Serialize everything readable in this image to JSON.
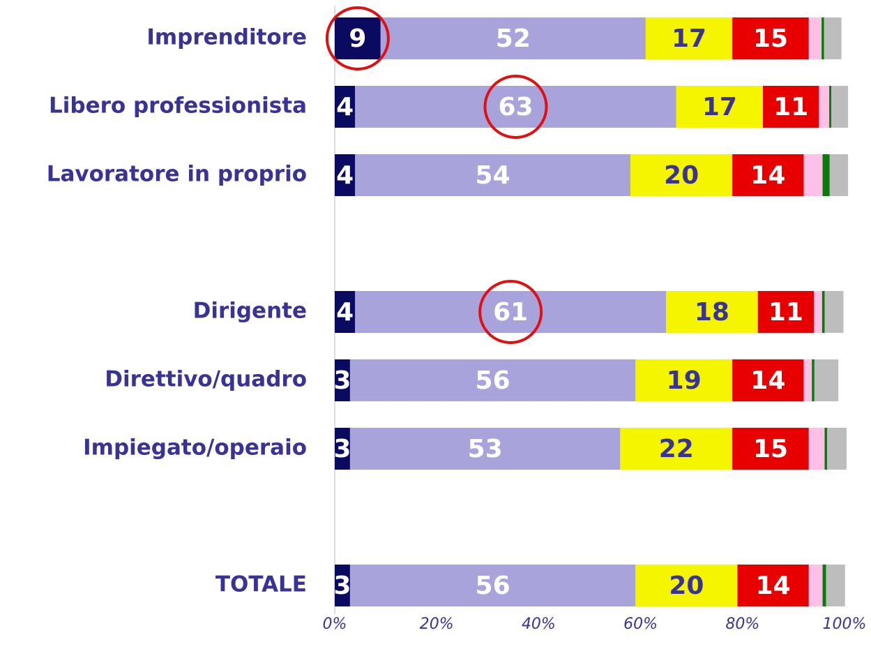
{
  "chart_data": {
    "type": "stacked_barh",
    "categories": [
      "Imprenditore",
      "Libero professionista",
      "Lavoratore in proprio",
      null,
      "Dirigente",
      "Direttivo/quadro",
      "Impiegato/operaio",
      null,
      "TOTALE"
    ],
    "series": [
      {
        "color": "#0a0a60",
        "label_color": "#ffffff",
        "show_labels": true,
        "values": [
          9,
          4,
          4,
          null,
          4,
          3,
          3,
          null,
          3
        ]
      },
      {
        "color": "#a9a3dc",
        "label_color": "#ffffff",
        "show_labels": true,
        "values": [
          52,
          63,
          54,
          null,
          61,
          56,
          53,
          null,
          56
        ]
      },
      {
        "color": "#f5f500",
        "label_color": "#3a3396",
        "show_labels": true,
        "values": [
          17,
          17,
          20,
          null,
          18,
          19,
          22,
          null,
          20
        ]
      },
      {
        "color": "#e80000",
        "label_color": "#ffffff",
        "show_labels": true,
        "values": [
          15,
          11,
          14,
          null,
          11,
          14,
          15,
          null,
          14
        ]
      },
      {
        "color": "#ffc0e8",
        "show_labels": false,
        "values": [
          2.5,
          2,
          3.7,
          null,
          1.6,
          1.6,
          3.1,
          null,
          2.7
        ]
      },
      {
        "color": "#0a7a0a",
        "show_labels": false,
        "values": [
          0.5,
          0.4,
          1.4,
          null,
          0.5,
          0.5,
          0.5,
          null,
          0.7
        ]
      },
      {
        "color": "#bdbdbd",
        "show_labels": false,
        "values": [
          3.4,
          3.3,
          3.6,
          null,
          3.7,
          4.7,
          3.8,
          null,
          3.7
        ]
      }
    ],
    "highlight": [
      [
        0,
        0
      ],
      [
        1,
        1
      ],
      [
        1,
        4
      ]
    ],
    "highlight_color": "#e01010",
    "xlim": [
      0,
      100
    ],
    "xticks": [
      {
        "value": 0,
        "label": "0%"
      },
      {
        "value": 20,
        "label": "20%"
      },
      {
        "value": 40,
        "label": "40%"
      },
      {
        "value": 60,
        "label": "60%"
      },
      {
        "value": 80,
        "label": "80%"
      },
      {
        "value": 100,
        "label": "100%"
      }
    ]
  }
}
